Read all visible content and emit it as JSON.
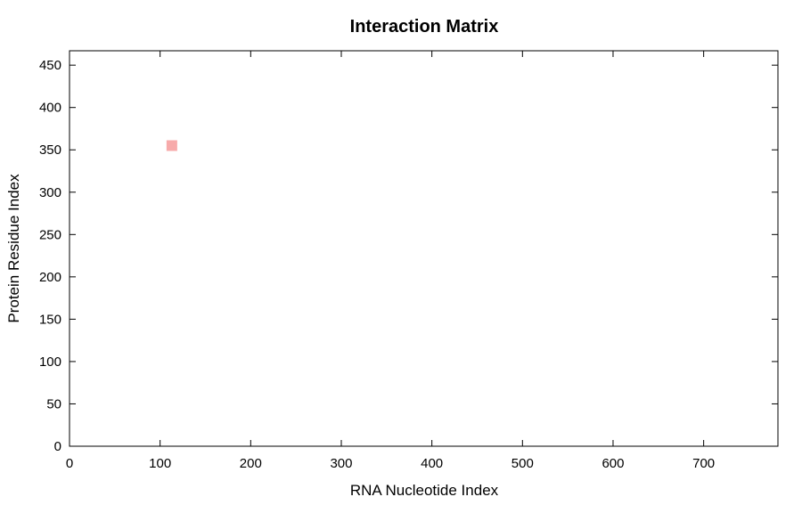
{
  "chart_data": {
    "type": "heatmap",
    "title": "Interaction Matrix",
    "xlabel": "RNA Nucleotide Index",
    "ylabel": "Protein Residue Index",
    "xlim": [
      0,
      782
    ],
    "ylim": [
      0,
      467
    ],
    "x_ticks": [
      0,
      100,
      200,
      300,
      400,
      500,
      600,
      700
    ],
    "y_ticks": [
      0,
      50,
      100,
      150,
      200,
      250,
      300,
      350,
      400,
      450
    ],
    "grid": false,
    "legend": "none",
    "points": [
      {
        "x": 113,
        "y": 355,
        "color": "#f7aaaa"
      }
    ]
  }
}
